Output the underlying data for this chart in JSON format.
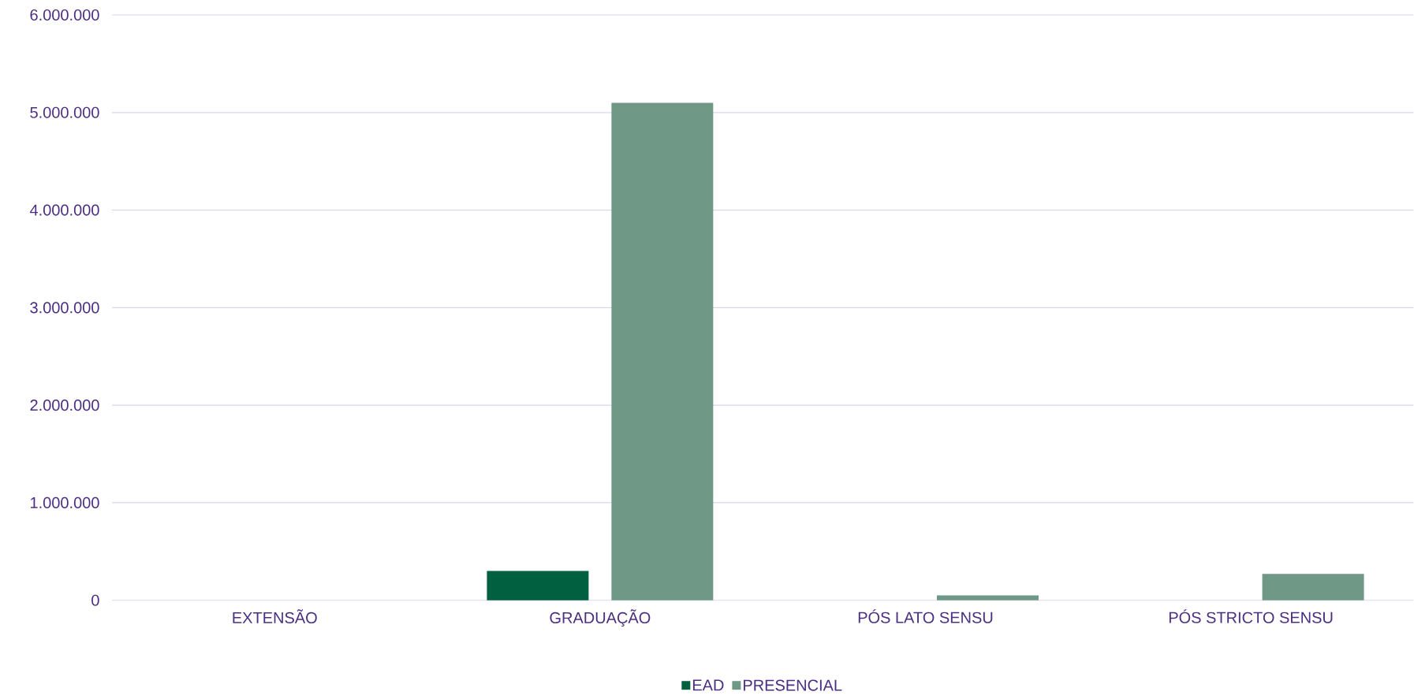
{
  "chart_data": {
    "type": "bar",
    "categories": [
      "EXTENSÃO",
      "GRADUAÇÃO",
      "PÓS LATO SENSU",
      "PÓS STRICTO SENSU"
    ],
    "series": [
      {
        "name": "EAD",
        "color": "#00603f",
        "values": [
          0,
          300000,
          0,
          0
        ]
      },
      {
        "name": "PRESENCIAL",
        "color": "#6f9886",
        "values": [
          0,
          5100000,
          50000,
          270000
        ]
      }
    ],
    "ylim": [
      0,
      6000000
    ],
    "yticks": [
      {
        "value": 0,
        "label": "0"
      },
      {
        "value": 1000000,
        "label": "1.000.000"
      },
      {
        "value": 2000000,
        "label": "2.000.000"
      },
      {
        "value": 3000000,
        "label": "3.000.000"
      },
      {
        "value": 4000000,
        "label": "4.000.000"
      },
      {
        "value": 5000000,
        "label": "5.000.000"
      },
      {
        "value": 6000000,
        "label": "6.000.000"
      }
    ],
    "grid": "y",
    "legend": "bottom"
  }
}
